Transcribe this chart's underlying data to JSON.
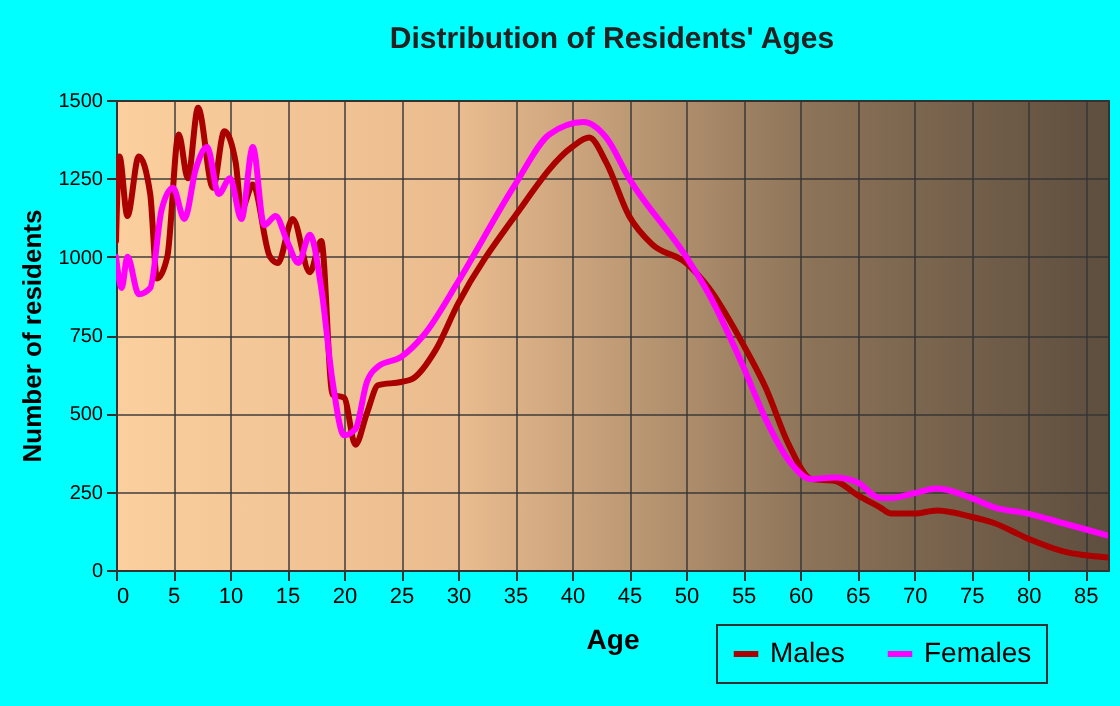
{
  "chart_data": {
    "type": "line",
    "title": "Distribution of Residents' Ages",
    "xlabel": "Age",
    "ylabel": "Number of residents",
    "xlim": [
      0,
      87
    ],
    "xticks": [
      0,
      5,
      10,
      15,
      20,
      25,
      30,
      35,
      40,
      45,
      50,
      55,
      60,
      65,
      70,
      75,
      80,
      85
    ],
    "ylim": [
      0,
      1500
    ],
    "yticks": [
      0,
      250,
      500,
      750,
      1000,
      1250,
      1500
    ],
    "grid": true,
    "legend": "bottom right",
    "series": [
      {
        "name": "Males",
        "color": "#aa0000",
        "x": [
          0,
          0.3,
          1,
          2,
          3,
          3.6,
          4.5,
          5.5,
          6.3,
          7.2,
          8.5,
          9.5,
          10.5,
          11,
          12,
          13.5,
          14.2,
          15.5,
          17,
          18,
          19,
          20,
          21,
          22,
          23,
          25,
          26,
          28,
          30,
          35,
          40,
          41.5,
          43,
          45,
          47,
          50,
          52,
          55,
          57,
          59,
          61,
          63,
          65,
          67,
          68,
          70,
          72,
          75,
          77,
          80,
          83,
          87
        ],
        "values": [
          1050,
          1320,
          1130,
          1320,
          1200,
          930,
          1000,
          1390,
          1250,
          1475,
          1220,
          1400,
          1300,
          1150,
          1230,
          1000,
          980,
          1120,
          950,
          1050,
          560,
          550,
          400,
          500,
          590,
          600,
          610,
          700,
          850,
          1130,
          1350,
          1380,
          1300,
          1130,
          1040,
          980,
          900,
          720,
          580,
          400,
          290,
          285,
          240,
          200,
          180,
          180,
          190,
          170,
          150,
          100,
          60,
          40
        ]
      },
      {
        "name": "Females",
        "color": "#ff00ff",
        "x": [
          0,
          0.5,
          1,
          2,
          3,
          4,
          5,
          6,
          7,
          8,
          9,
          10,
          11,
          12,
          13,
          14,
          15,
          16,
          17,
          18,
          19,
          20,
          21,
          22,
          23,
          25,
          27,
          30,
          35,
          38,
          41,
          43,
          45,
          50,
          52,
          55,
          57,
          59,
          61,
          63,
          65,
          67,
          68,
          70,
          72,
          75,
          77,
          80,
          83,
          87
        ],
        "values": [
          1000,
          900,
          1000,
          880,
          900,
          1150,
          1220,
          1120,
          1280,
          1350,
          1200,
          1250,
          1120,
          1350,
          1100,
          1130,
          1050,
          980,
          1070,
          900,
          600,
          430,
          450,
          600,
          650,
          680,
          750,
          920,
          1230,
          1390,
          1430,
          1380,
          1250,
          1000,
          880,
          650,
          480,
          350,
          290,
          295,
          280,
          230,
          230,
          245,
          260,
          230,
          200,
          180,
          150,
          110
        ]
      }
    ]
  }
}
